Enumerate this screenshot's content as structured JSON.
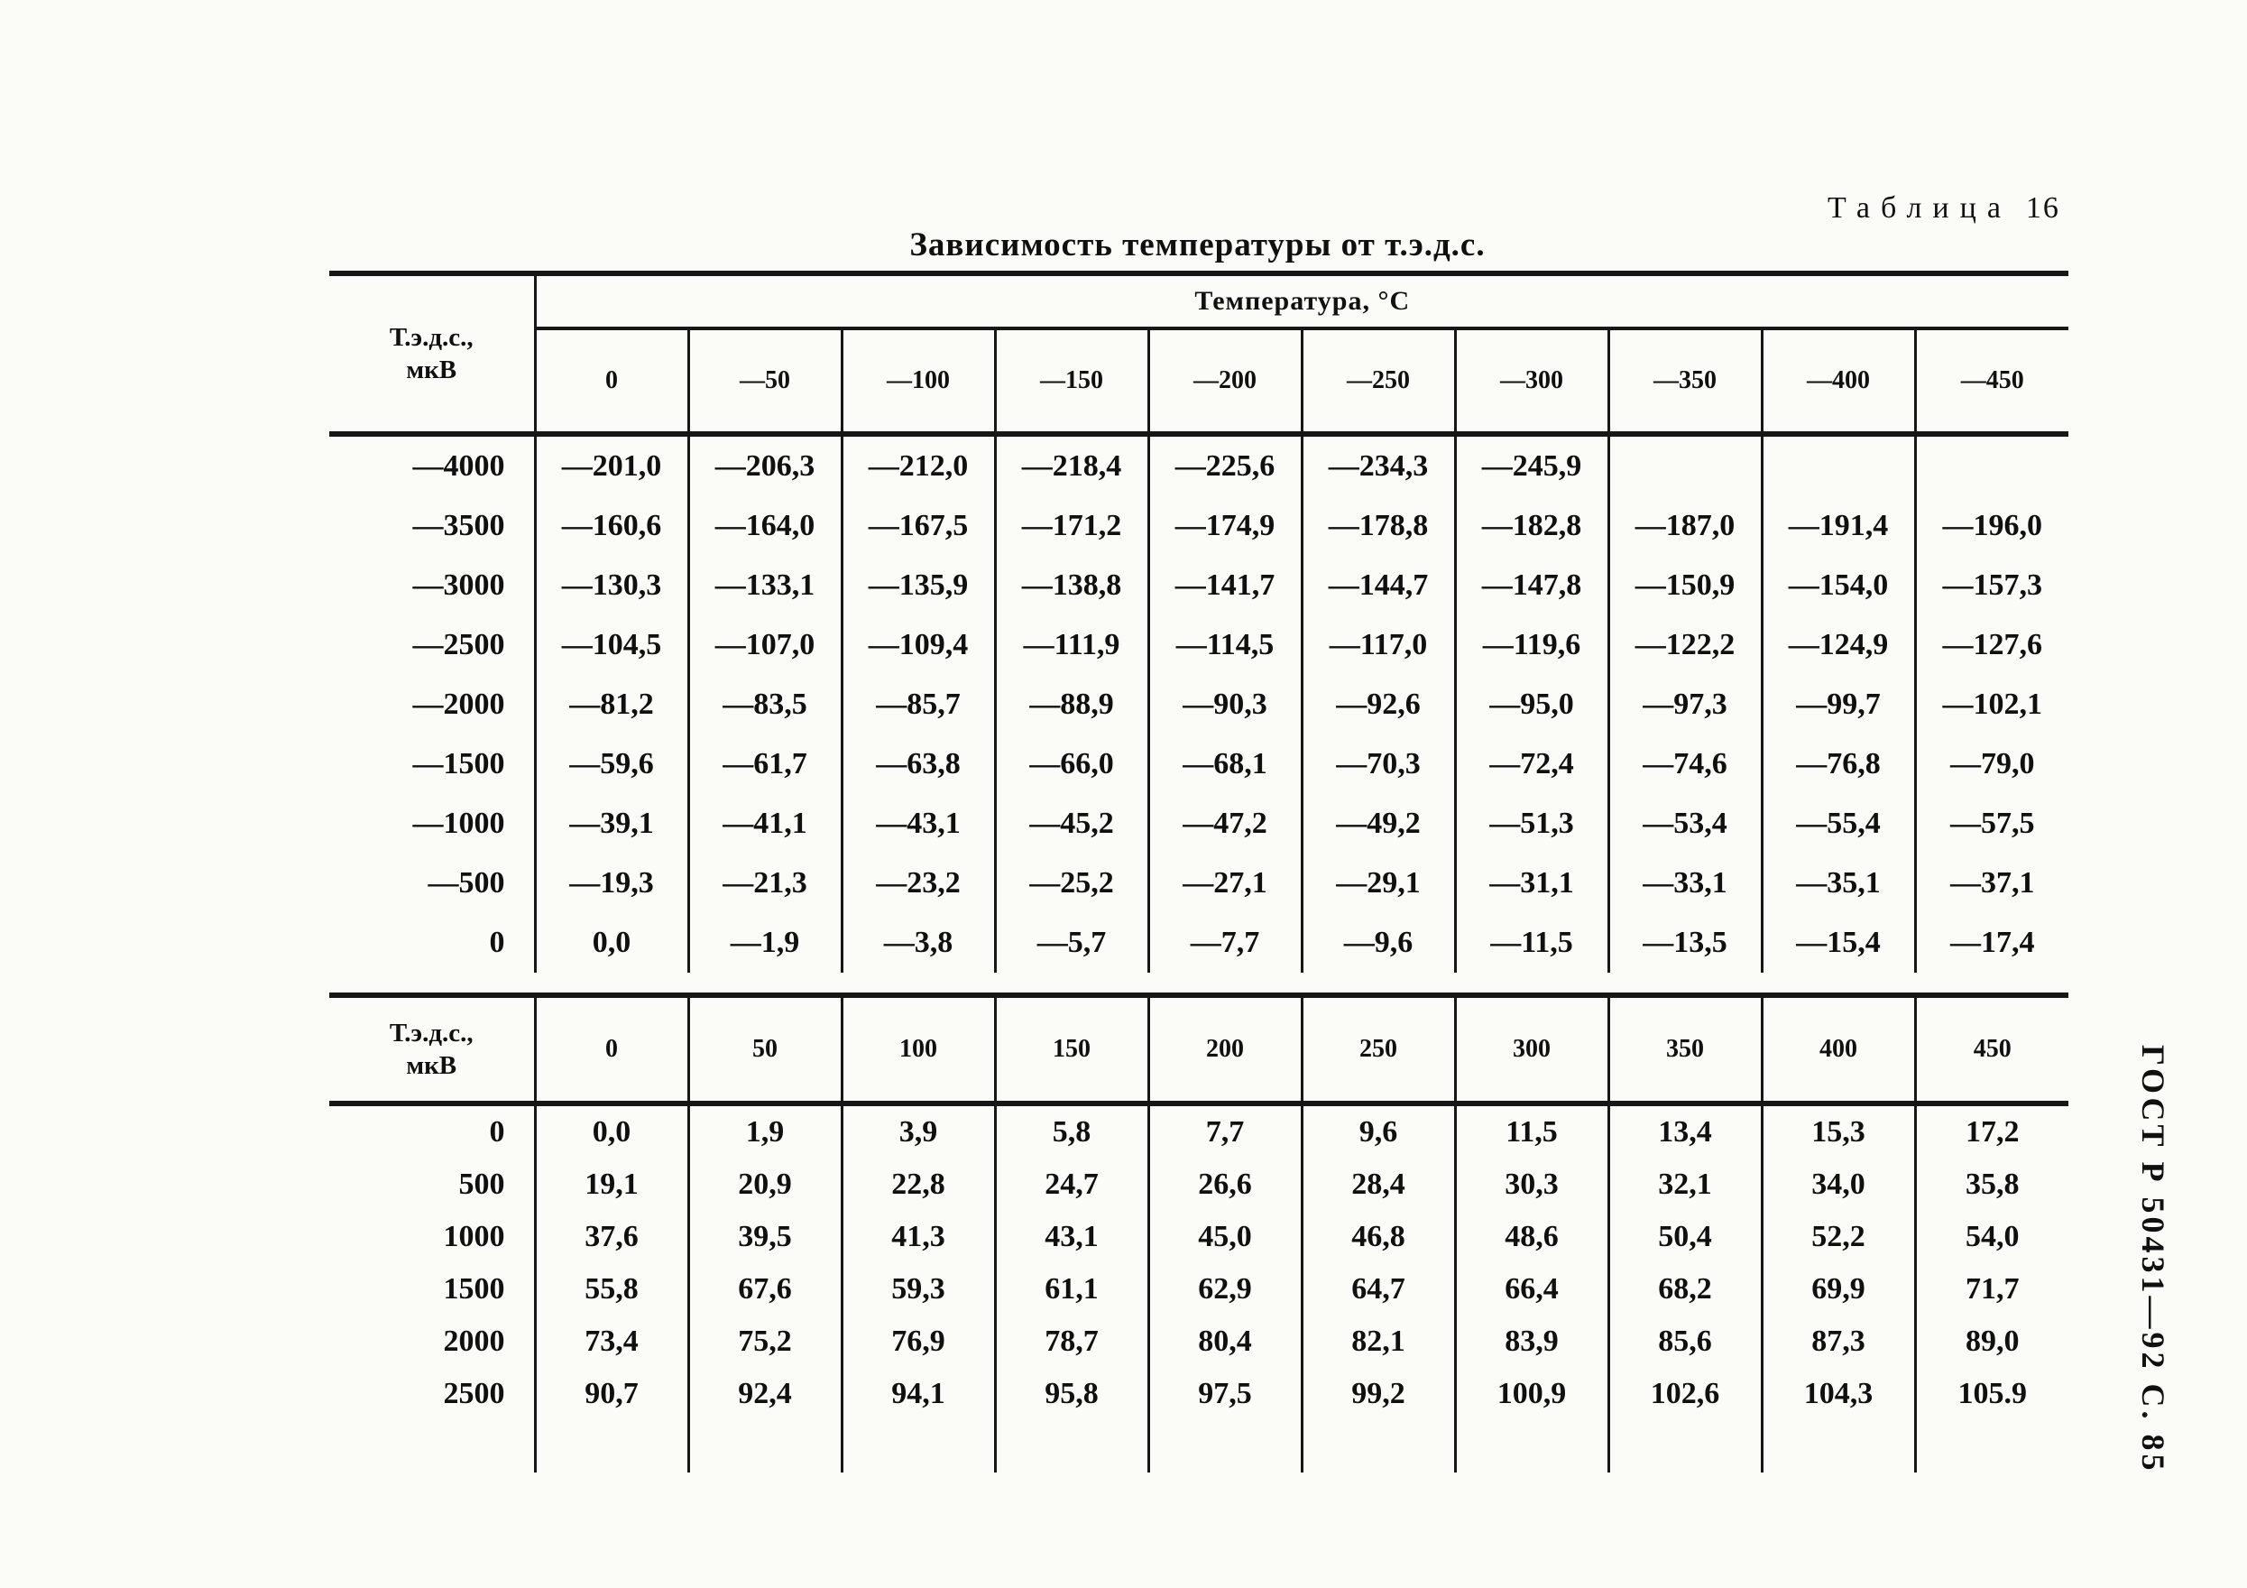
{
  "caption": {
    "word": "Таблица",
    "number": "16"
  },
  "subtitle": "Зависимость температуры от т.э.д.с.",
  "side_label": "ГОСТ Р 50431—92 С. 85",
  "table_negative": {
    "corner_lines": [
      "Т.э.д.с.,",
      "мкВ"
    ],
    "span_header": "Температура, °С",
    "columns": [
      "0",
      "—50",
      "—100",
      "—150",
      "—200",
      "—250",
      "—300",
      "—350",
      "—400",
      "—450"
    ],
    "rows": [
      {
        "label": "—4000",
        "values": [
          "—201,0",
          "—206,3",
          "—212,0",
          "—218,4",
          "—225,6",
          "—234,3",
          "—245,9",
          "",
          "",
          ""
        ]
      },
      {
        "label": "—3500",
        "values": [
          "—160,6",
          "—164,0",
          "—167,5",
          "—171,2",
          "—174,9",
          "—178,8",
          "—182,8",
          "—187,0",
          "—191,4",
          "—196,0"
        ]
      },
      {
        "label": "—3000",
        "values": [
          "—130,3",
          "—133,1",
          "—135,9",
          "—138,8",
          "—141,7",
          "—144,7",
          "—147,8",
          "—150,9",
          "—154,0",
          "—157,3"
        ]
      },
      {
        "label": "—2500",
        "values": [
          "—104,5",
          "—107,0",
          "—109,4",
          "—111,9",
          "—114,5",
          "—117,0",
          "—119,6",
          "—122,2",
          "—124,9",
          "—127,6"
        ]
      },
      {
        "label": "—2000",
        "values": [
          "—81,2",
          "—83,5",
          "—85,7",
          "—88,9",
          "—90,3",
          "—92,6",
          "—95,0",
          "—97,3",
          "—99,7",
          "—102,1"
        ]
      },
      {
        "label": "—1500",
        "values": [
          "—59,6",
          "—61,7",
          "—63,8",
          "—66,0",
          "—68,1",
          "—70,3",
          "—72,4",
          "—74,6",
          "—76,8",
          "—79,0"
        ]
      },
      {
        "label": "—1000",
        "values": [
          "—39,1",
          "—41,1",
          "—43,1",
          "—45,2",
          "—47,2",
          "—49,2",
          "—51,3",
          "—53,4",
          "—55,4",
          "—57,5"
        ]
      },
      {
        "label": "—500",
        "values": [
          "—19,3",
          "—21,3",
          "—23,2",
          "—25,2",
          "—27,1",
          "—29,1",
          "—31,1",
          "—33,1",
          "—35,1",
          "—37,1"
        ]
      },
      {
        "label": "0",
        "values": [
          "0,0",
          "—1,9",
          "—3,8",
          "—5,7",
          "—7,7",
          "—9,6",
          "—11,5",
          "—13,5",
          "—15,4",
          "—17,4"
        ]
      }
    ]
  },
  "table_positive": {
    "corner_lines": [
      "Т.э.д.с.,",
      "мкВ"
    ],
    "columns": [
      "0",
      "50",
      "100",
      "150",
      "200",
      "250",
      "300",
      "350",
      "400",
      "450"
    ],
    "rows": [
      {
        "label": "0",
        "values": [
          "0,0",
          "1,9",
          "3,9",
          "5,8",
          "7,7",
          "9,6",
          "11,5",
          "13,4",
          "15,3",
          "17,2"
        ]
      },
      {
        "label": "500",
        "values": [
          "19,1",
          "20,9",
          "22,8",
          "24,7",
          "26,6",
          "28,4",
          "30,3",
          "32,1",
          "34,0",
          "35,8"
        ]
      },
      {
        "label": "1000",
        "values": [
          "37,6",
          "39,5",
          "41,3",
          "43,1",
          "45,0",
          "46,8",
          "48,6",
          "50,4",
          "52,2",
          "54,0"
        ]
      },
      {
        "label": "1500",
        "values": [
          "55,8",
          "67,6",
          "59,3",
          "61,1",
          "62,9",
          "64,7",
          "66,4",
          "68,2",
          "69,9",
          "71,7"
        ]
      },
      {
        "label": "2000",
        "values": [
          "73,4",
          "75,2",
          "76,9",
          "78,7",
          "80,4",
          "82,1",
          "83,9",
          "85,6",
          "87,3",
          "89,0"
        ]
      },
      {
        "label": "2500",
        "values": [
          "90,7",
          "92,4",
          "94,1",
          "95,8",
          "97,5",
          "99,2",
          "100,9",
          "102,6",
          "104,3",
          "105.9"
        ]
      }
    ]
  }
}
